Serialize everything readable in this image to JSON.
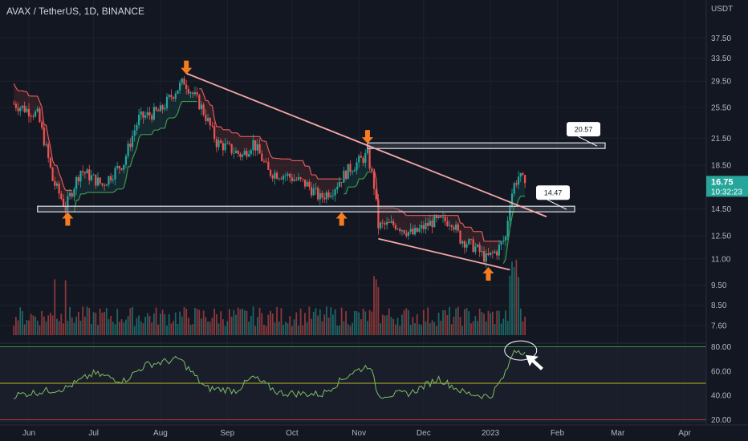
{
  "header": {
    "title": "AVAX / TetherUS, 1D, BINANCE"
  },
  "colors": {
    "background": "#131722",
    "up": "#26a69a",
    "down": "#ef5350",
    "text": "#b2b5be",
    "grid": "#1e222d",
    "trendline": "#f7a8a8",
    "rsi": "#7ebd62",
    "arrow": "#f57c1f",
    "last_price_bg": "#26a69a"
  },
  "chart_data": [
    {
      "type": "candlestick",
      "symbol": "AVAX / TetherUS",
      "interval": "1D",
      "exchange": "BINANCE",
      "price_unit": "USDT",
      "x_tick_labels": [
        "Jun",
        "Jul",
        "Aug",
        "Sep",
        "Oct",
        "Nov",
        "Dec",
        "2023",
        "Feb",
        "Mar",
        "Apr"
      ],
      "y_tick_labels": [
        "37.50",
        "33.50",
        "29.50",
        "25.50",
        "21.50",
        "18.50",
        "14.50",
        "12.50",
        "11.00",
        "9.50",
        "8.50",
        "7.60"
      ],
      "ylim": [
        7.2,
        40.5
      ],
      "y_scale": "log",
      "last_price": "16.75",
      "countdown": "10:32:23",
      "anchors": [
        {
          "date": "2022-05-25",
          "price": 26.0
        },
        {
          "date": "2022-06-05",
          "price": 24.5
        },
        {
          "date": "2022-06-12",
          "price": 17.0
        },
        {
          "date": "2022-06-18",
          "price": 14.6
        },
        {
          "date": "2022-06-25",
          "price": 18.0
        },
        {
          "date": "2022-07-05",
          "price": 16.6
        },
        {
          "date": "2022-07-15",
          "price": 18.8
        },
        {
          "date": "2022-07-22",
          "price": 24.0
        },
        {
          "date": "2022-08-01",
          "price": 25.0
        },
        {
          "date": "2022-08-08",
          "price": 28.0
        },
        {
          "date": "2022-08-12",
          "price": 29.5
        },
        {
          "date": "2022-08-20",
          "price": 25.5
        },
        {
          "date": "2022-08-27",
          "price": 21.0
        },
        {
          "date": "2022-09-08",
          "price": 19.5
        },
        {
          "date": "2022-09-13",
          "price": 21.0
        },
        {
          "date": "2022-09-20",
          "price": 17.8
        },
        {
          "date": "2022-09-28",
          "price": 17.5
        },
        {
          "date": "2022-10-08",
          "price": 16.6
        },
        {
          "date": "2022-10-14",
          "price": 15.4
        },
        {
          "date": "2022-10-20",
          "price": 16.2
        },
        {
          "date": "2022-10-27",
          "price": 18.0
        },
        {
          "date": "2022-11-05",
          "price": 19.6
        },
        {
          "date": "2022-11-08",
          "price": 16.5
        },
        {
          "date": "2022-11-10",
          "price": 13.2
        },
        {
          "date": "2022-11-18",
          "price": 13.3
        },
        {
          "date": "2022-11-26",
          "price": 12.6
        },
        {
          "date": "2022-12-05",
          "price": 13.5
        },
        {
          "date": "2022-12-14",
          "price": 13.6
        },
        {
          "date": "2022-12-18",
          "price": 12.3
        },
        {
          "date": "2022-12-25",
          "price": 11.7
        },
        {
          "date": "2022-12-30",
          "price": 11.0
        },
        {
          "date": "2023-01-04",
          "price": 11.5
        },
        {
          "date": "2023-01-08",
          "price": 12.4
        },
        {
          "date": "2023-01-10",
          "price": 15.2
        },
        {
          "date": "2023-01-12",
          "price": 16.6
        },
        {
          "date": "2023-01-14",
          "price": 17.4
        },
        {
          "date": "2023-01-17",
          "price": 16.75
        }
      ],
      "horizontal_levels": [
        {
          "value": 20.57,
          "label": "20.57"
        },
        {
          "value": 14.47,
          "label": "14.47"
        }
      ],
      "trendlines": [
        {
          "from": {
            "date": "2022-08-13",
            "price": 30.8
          },
          "to": {
            "date": "2023-01-27",
            "price": 13.9
          }
        },
        {
          "from": {
            "date": "2022-11-10",
            "price": 12.3
          },
          "to": {
            "date": "2023-01-10",
            "price": 10.35
          }
        }
      ],
      "markers": [
        {
          "date": "2022-06-19",
          "price": 13.7,
          "direction": "up"
        },
        {
          "date": "2022-08-13",
          "price": 31.9,
          "direction": "down"
        },
        {
          "date": "2022-10-24",
          "price": 13.7,
          "direction": "up"
        },
        {
          "date": "2022-11-05",
          "price": 21.7,
          "direction": "down"
        },
        {
          "date": "2022-12-31",
          "price": 10.1,
          "direction": "up"
        }
      ]
    },
    {
      "type": "line",
      "indicator": "RSI",
      "y_tick_labels": [
        "80.00",
        "60.00",
        "40.00",
        "20.00"
      ],
      "ylim": [
        17,
        83
      ],
      "levels": [
        80,
        50,
        20
      ],
      "anchors": [
        {
          "date": "2022-05-25",
          "value": 40
        },
        {
          "date": "2022-06-18",
          "value": 46
        },
        {
          "date": "2022-07-01",
          "value": 58
        },
        {
          "date": "2022-07-15",
          "value": 52
        },
        {
          "date": "2022-07-25",
          "value": 65
        },
        {
          "date": "2022-08-10",
          "value": 70
        },
        {
          "date": "2022-08-22",
          "value": 46
        },
        {
          "date": "2022-09-05",
          "value": 44
        },
        {
          "date": "2022-09-13",
          "value": 55
        },
        {
          "date": "2022-09-25",
          "value": 42
        },
        {
          "date": "2022-10-15",
          "value": 41
        },
        {
          "date": "2022-10-28",
          "value": 58
        },
        {
          "date": "2022-11-06",
          "value": 65
        },
        {
          "date": "2022-11-10",
          "value": 40
        },
        {
          "date": "2022-11-25",
          "value": 42
        },
        {
          "date": "2022-12-08",
          "value": 54
        },
        {
          "date": "2022-12-20",
          "value": 42
        },
        {
          "date": "2023-01-01",
          "value": 39
        },
        {
          "date": "2023-01-08",
          "value": 58
        },
        {
          "date": "2023-01-12",
          "value": 78
        },
        {
          "date": "2023-01-17",
          "value": 76
        }
      ]
    }
  ]
}
